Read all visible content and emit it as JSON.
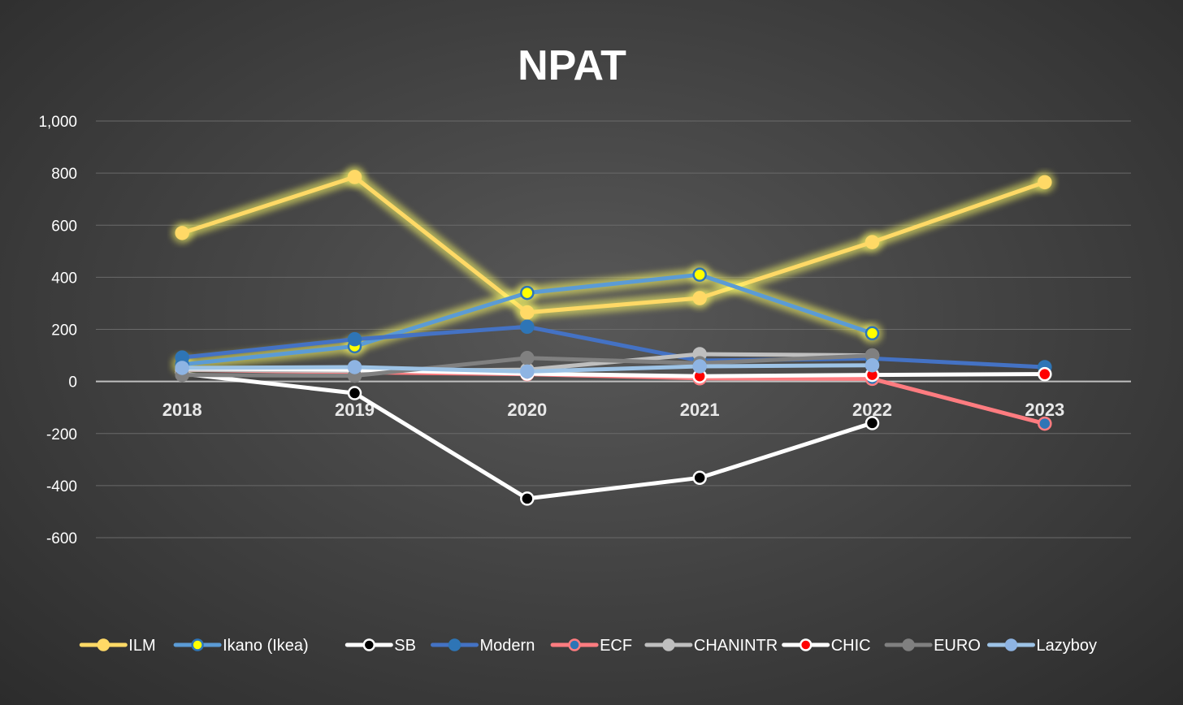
{
  "chart_data": {
    "type": "line",
    "title": "NPAT",
    "xlabel": "",
    "ylabel": "",
    "categories": [
      "2018",
      "2019",
      "2020",
      "2021",
      "2022",
      "2023"
    ],
    "ylim": [
      -600,
      1000
    ],
    "yticks": [
      1000,
      800,
      600,
      400,
      200,
      0,
      -200,
      -400,
      -600
    ],
    "ytick_labels": [
      "1,000",
      "800",
      "600",
      "400",
      "200",
      "0",
      "-200",
      "-400",
      "-600"
    ],
    "grid": true,
    "legend_position": "bottom",
    "series": [
      {
        "name": "ILM",
        "values": [
          570,
          785,
          265,
          320,
          535,
          765
        ],
        "line_color": "#ffd966",
        "marker_fill": "#ffd966",
        "marker_stroke": "#ffd966",
        "glow": true
      },
      {
        "name": "Ikano (Ikea)",
        "values": [
          65,
          135,
          340,
          410,
          185,
          null
        ],
        "line_color": "#5b9bd5",
        "marker_fill": "#ffff00",
        "marker_stroke": "#2e75b6",
        "glow": true
      },
      {
        "name": "SB",
        "values": [
          30,
          -45,
          -450,
          -370,
          -160,
          null
        ],
        "line_color": "#ffffff",
        "marker_fill": "#000000",
        "marker_stroke": "#ffffff",
        "glow": false
      },
      {
        "name": "Modern",
        "values": [
          92,
          162,
          210,
          80,
          88,
          55
        ],
        "line_color": "#4472c4",
        "marker_fill": "#2e75b6",
        "marker_stroke": "#2e75b6",
        "glow": false
      },
      {
        "name": "ECF",
        "values": [
          45,
          35,
          28,
          12,
          10,
          -162
        ],
        "line_color": "#ff7c80",
        "marker_fill": "#2e75b6",
        "marker_stroke": "#ff7c80",
        "glow": false
      },
      {
        "name": "CHANINTR",
        "values": [
          45,
          40,
          45,
          105,
          100,
          null
        ],
        "line_color": "#bfbfbf",
        "marker_fill": "#bfbfbf",
        "marker_stroke": "#bfbfbf",
        "glow": false
      },
      {
        "name": "CHIC",
        "values": [
          50,
          45,
          30,
          20,
          25,
          28
        ],
        "line_color": "#ffffff",
        "marker_fill": "#ff0000",
        "marker_stroke": "#ffffff",
        "glow": false
      },
      {
        "name": "EURO",
        "values": [
          25,
          22,
          90,
          70,
          100,
          null
        ],
        "line_color": "#808080",
        "marker_fill": "#808080",
        "marker_stroke": "#808080",
        "glow": false
      },
      {
        "name": "Lazyboy",
        "values": [
          52,
          55,
          38,
          58,
          62,
          null
        ],
        "line_color": "#9dc3e6",
        "marker_fill": "#8eb4e3",
        "marker_stroke": "#8eb4e3",
        "glow": false
      }
    ]
  }
}
